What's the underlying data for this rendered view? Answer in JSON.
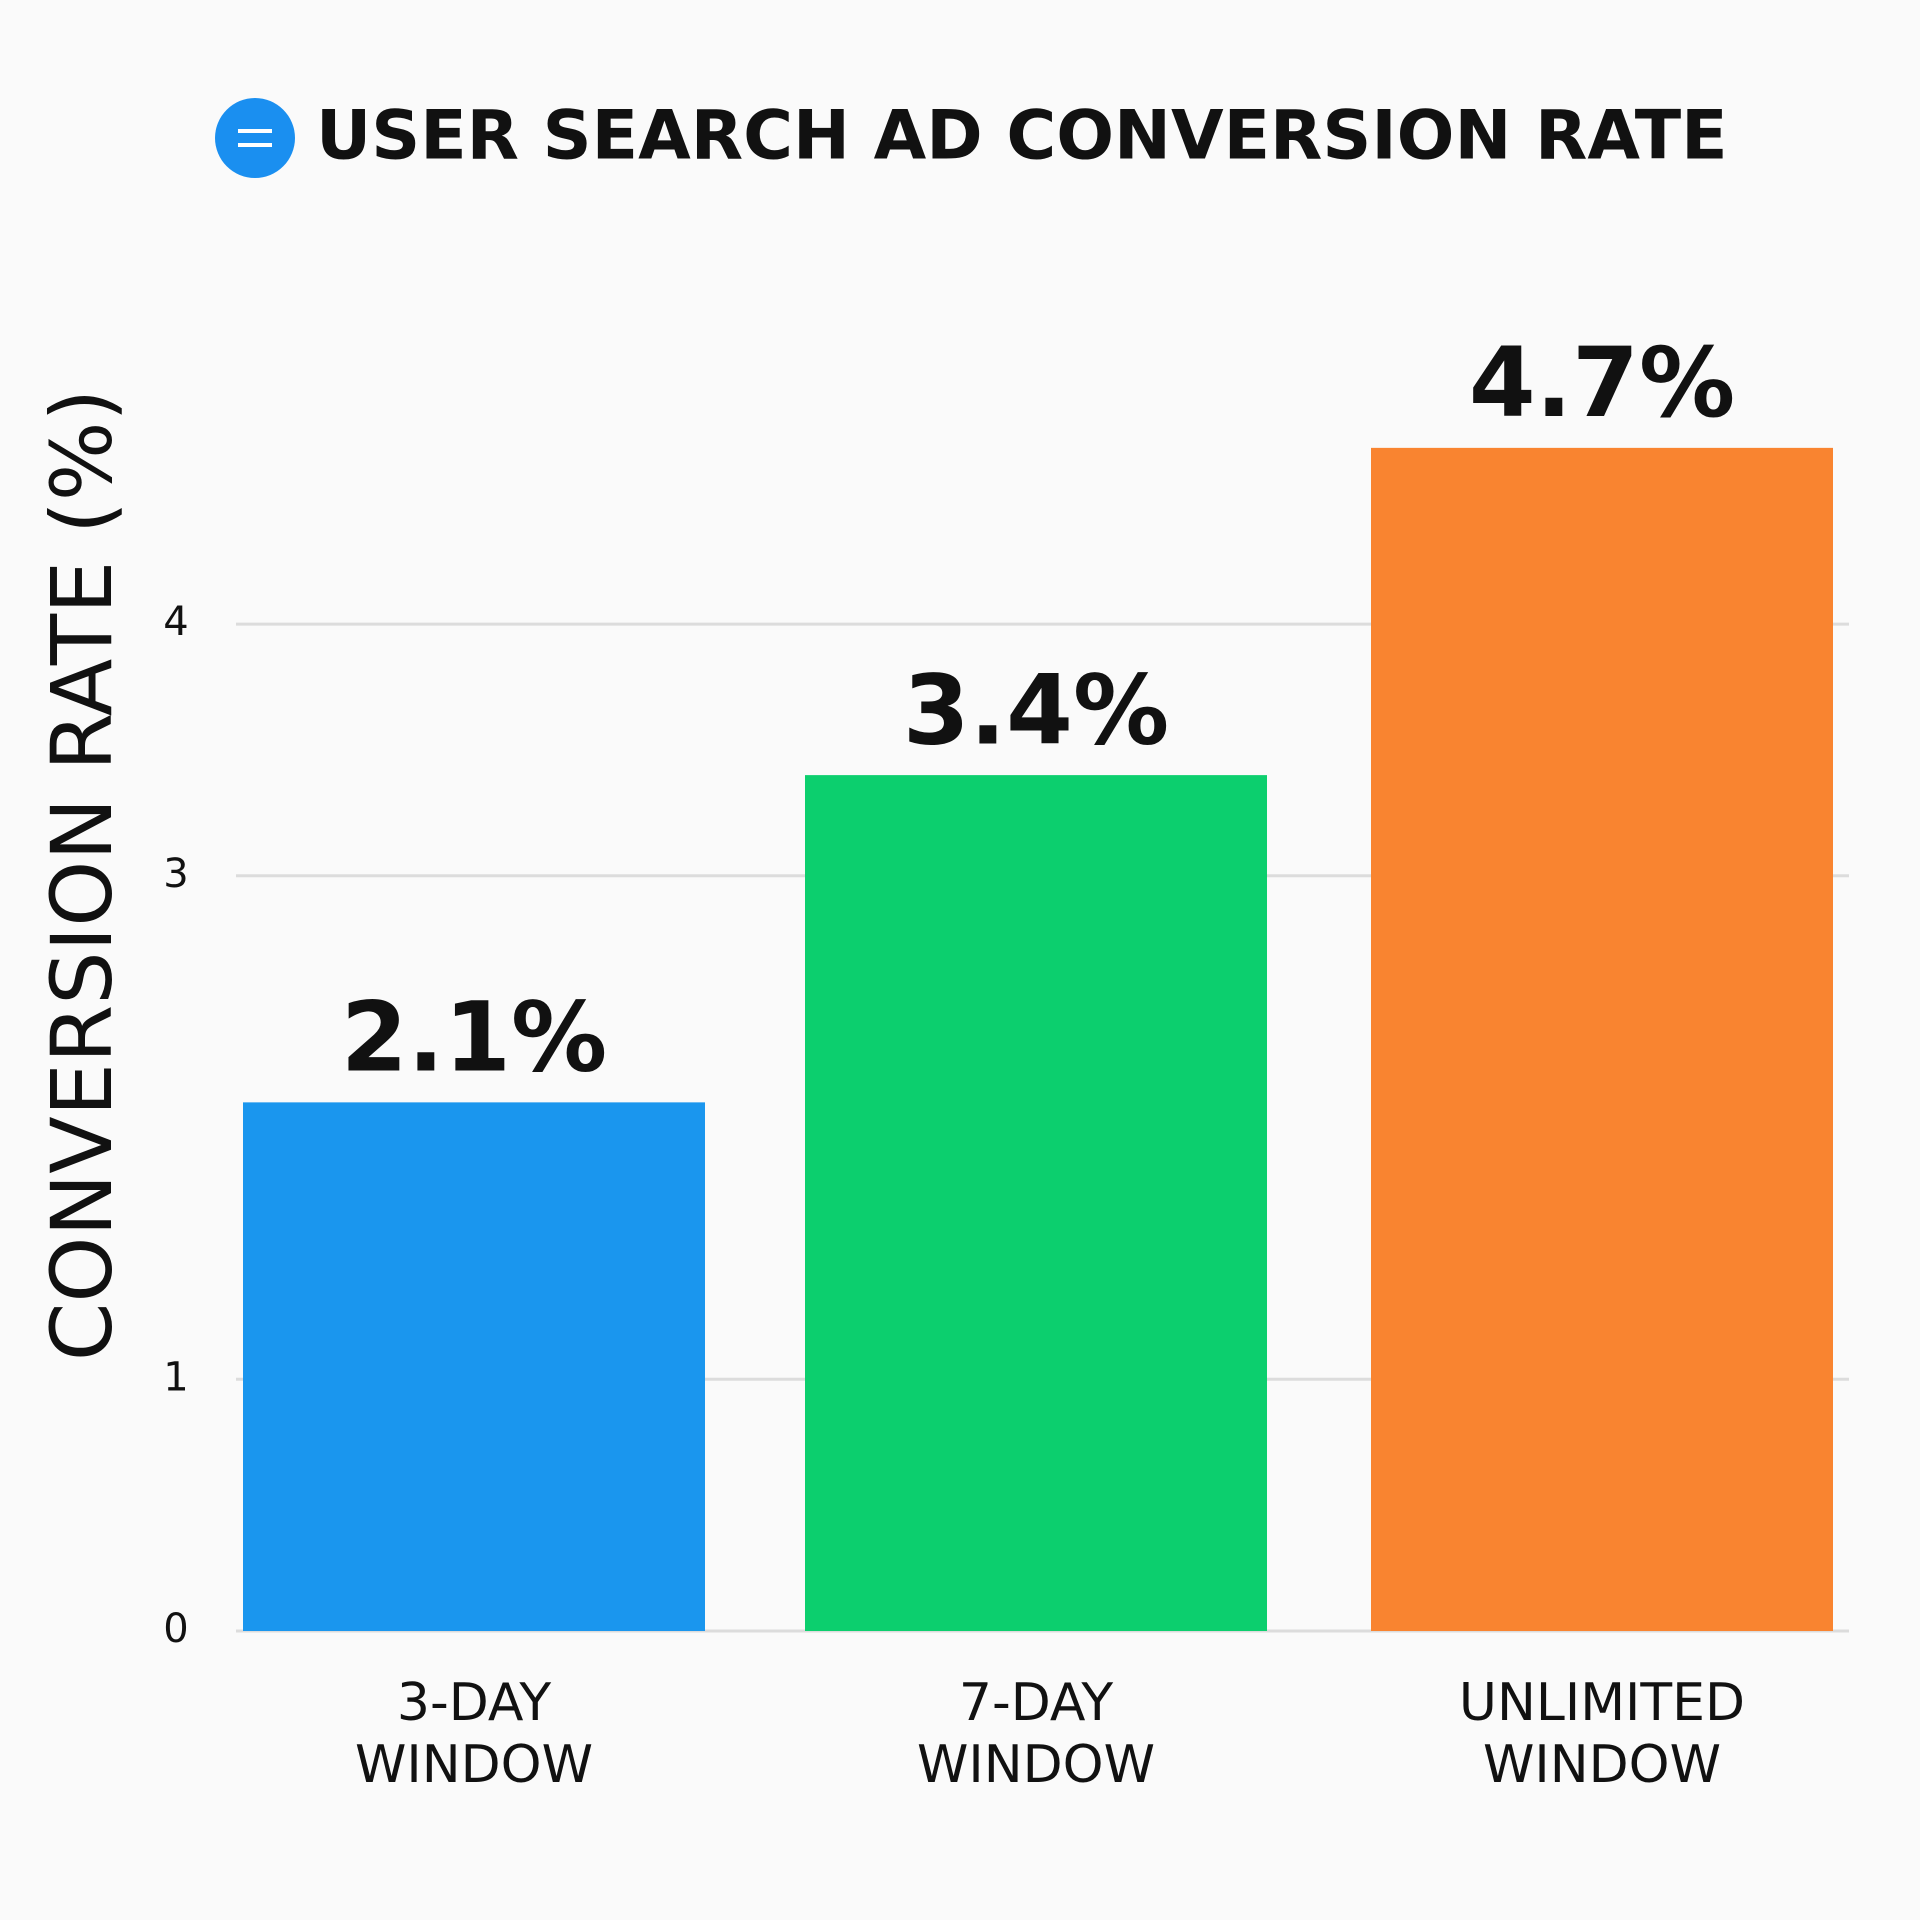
{
  "chart_data": {
    "type": "bar",
    "title": "USER SEARCH AD CONVERSION RATE",
    "y_label": "CONVERSION RATE (%)",
    "categories": [
      "3-DAY WINDOW",
      "7-DAY WINDOW",
      "UNLIMITED WINDOW"
    ],
    "values": [
      2.1,
      3.4,
      4.7
    ],
    "value_labels": [
      "2.1%",
      "3.4%",
      "4.7%"
    ],
    "colors": [
      "#1a96ee",
      "#0ccf6e",
      "#f98430"
    ],
    "ylim": [
      0,
      5.2
    ],
    "yticks": [
      0,
      1,
      3,
      4
    ],
    "grid": true
  }
}
